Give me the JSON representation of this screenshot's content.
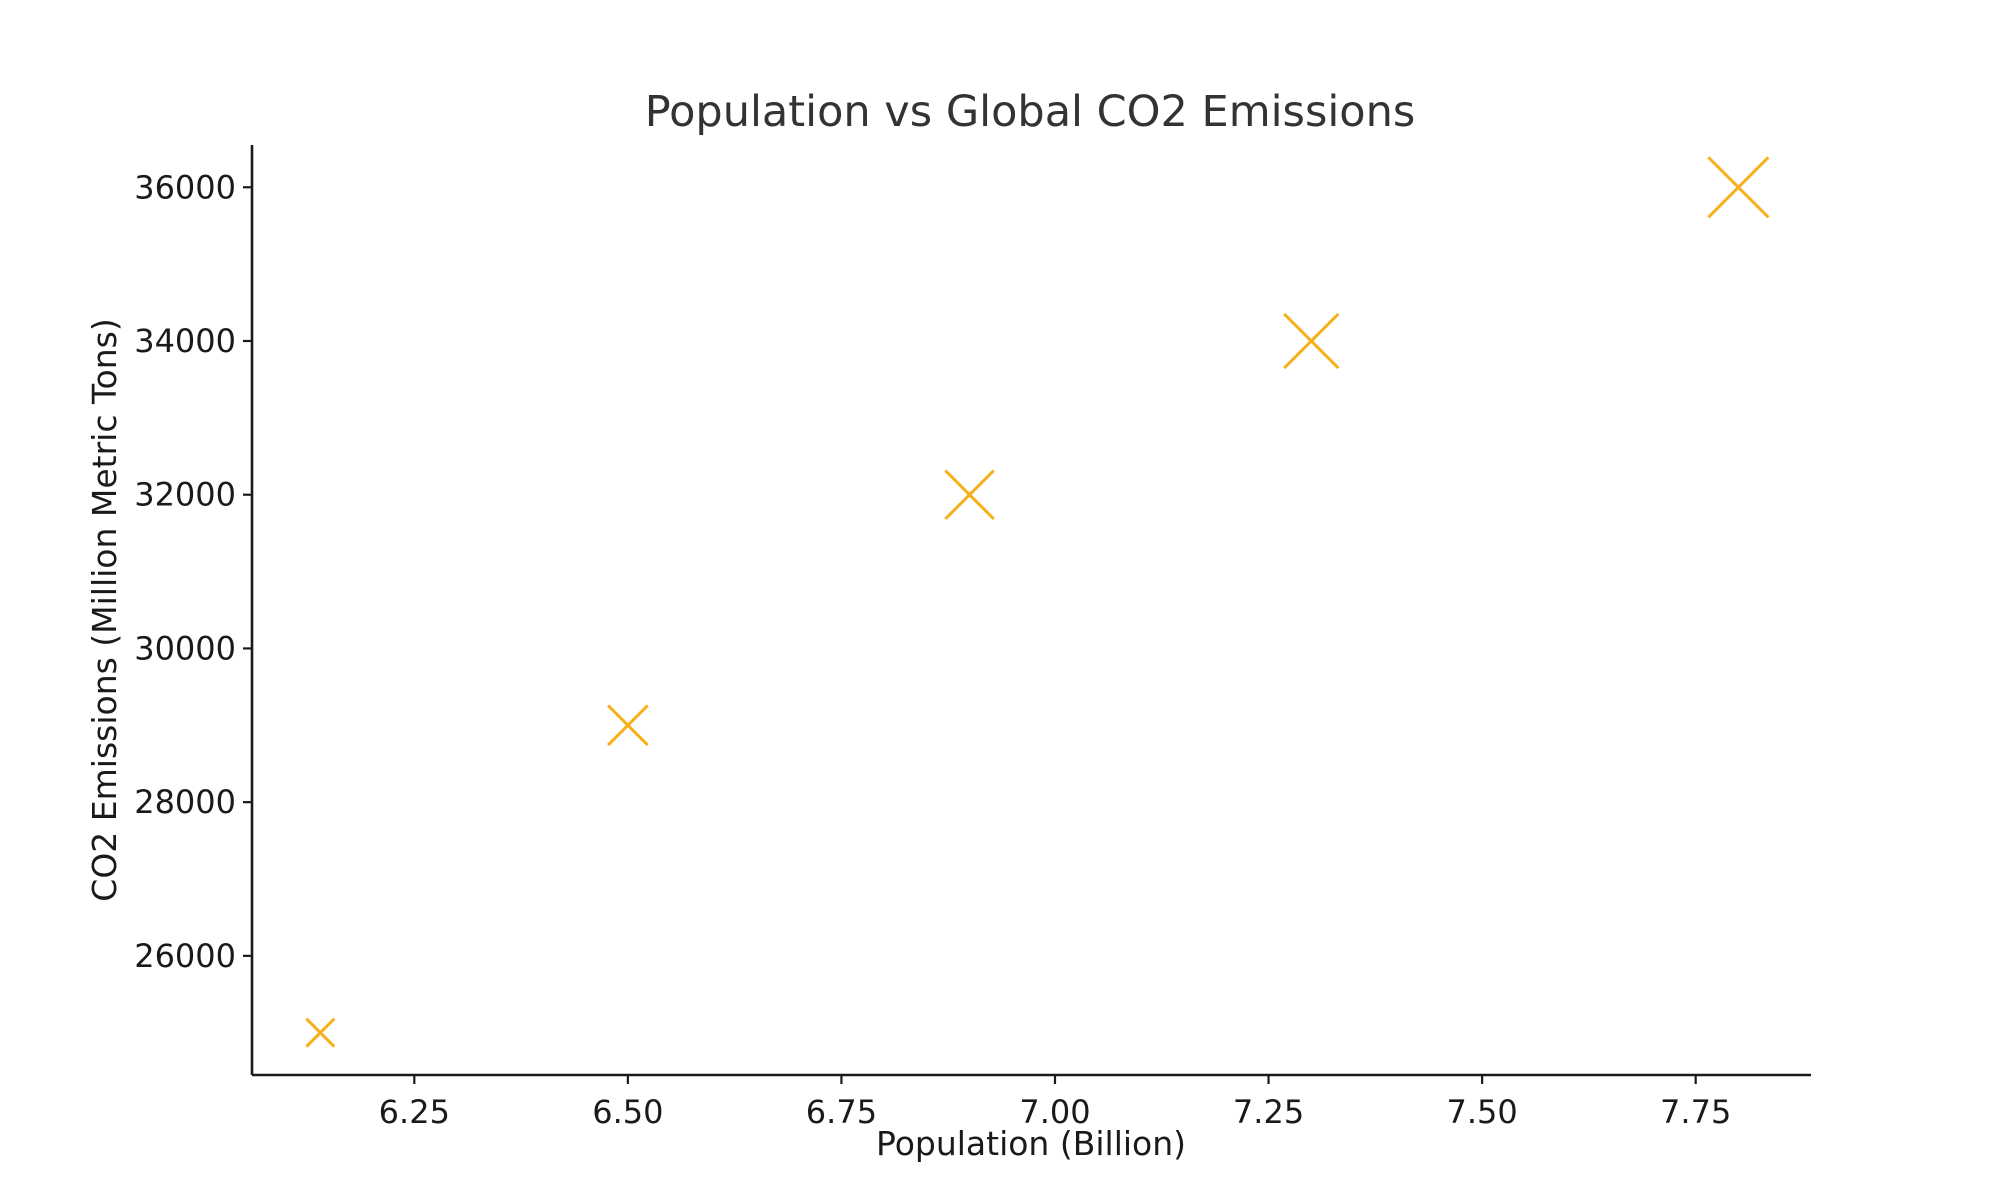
{
  "chart_data": {
    "type": "scatter",
    "title": "Population vs Global CO2 Emissions",
    "xlabel": "Population (Billion)",
    "ylabel": "CO2 Emissions (Million Metric Tons)",
    "xlim": [
      6.06,
      7.885
    ],
    "ylim": [
      24450,
      36550
    ],
    "xticks": [
      6.25,
      6.5,
      6.75,
      7.0,
      7.25,
      7.5,
      7.75
    ],
    "xtick_labels": [
      "6.25",
      "6.50",
      "6.75",
      "7.00",
      "7.25",
      "7.50",
      "7.75"
    ],
    "yticks": [
      26000,
      28000,
      30000,
      32000,
      34000,
      36000
    ],
    "ytick_labels": [
      "26000",
      "28000",
      "30000",
      "32000",
      "34000",
      "36000"
    ],
    "marker": "x",
    "color": "#f5b01a",
    "grid": false,
    "legend": "none",
    "points": [
      {
        "x": 6.14,
        "y": 25000
      },
      {
        "x": 6.5,
        "y": 29000
      },
      {
        "x": 6.9,
        "y": 32000
      },
      {
        "x": 7.3,
        "y": 34000
      },
      {
        "x": 7.8,
        "y": 36000
      }
    ]
  }
}
